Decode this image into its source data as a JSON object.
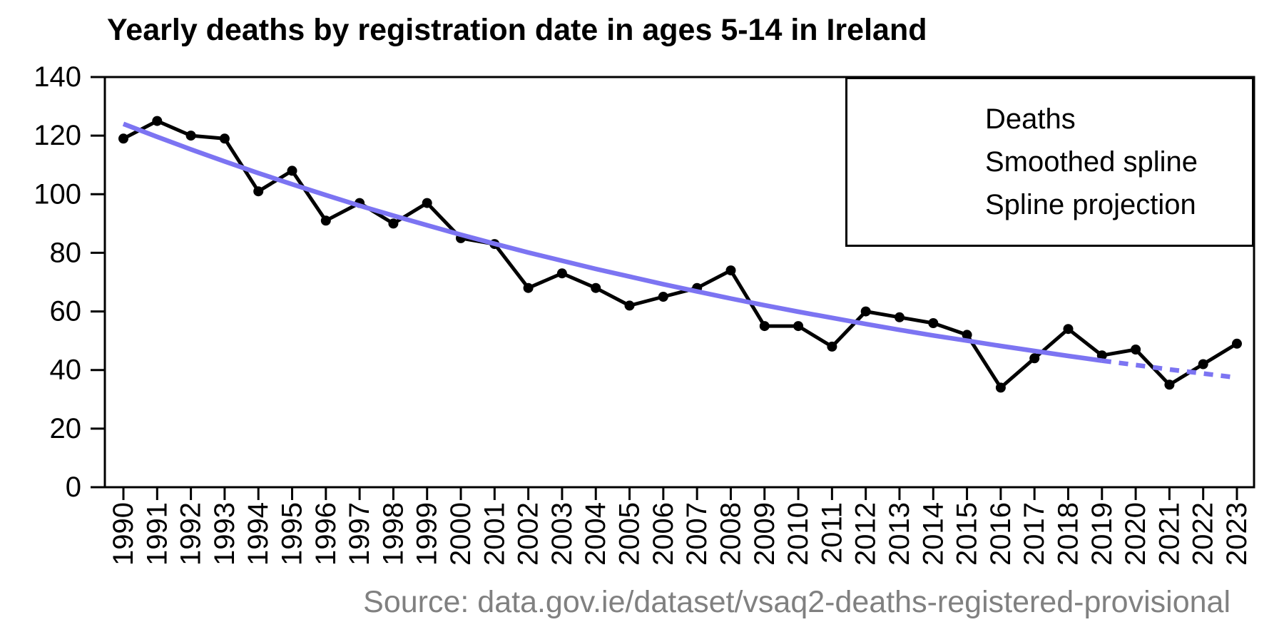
{
  "page": {
    "title_label": "Yearly deaths by registration date in ages 5-14 in Ireland",
    "source_label": "Source: data.gov.ie/dataset/vsaq2-deaths-registered-provisional"
  },
  "legend": {
    "items": [
      {
        "label": "Deaths",
        "style": "solid",
        "color": "#000000"
      },
      {
        "label": "Smoothed spline",
        "style": "solid",
        "color": "#7C74F2"
      },
      {
        "label": "Spline projection",
        "style": "dashed",
        "color": "#7C74F2"
      }
    ]
  },
  "colors": {
    "deaths": "#000000",
    "spline": "#7C74F2",
    "axis": "#000000",
    "source_text": "#808080"
  },
  "chart_data": {
    "type": "line",
    "title": "Yearly deaths by registration date in ages 5-14 in Ireland",
    "xlabel": "",
    "ylabel": "",
    "ylim": [
      0,
      140
    ],
    "yticks": [
      0,
      20,
      40,
      60,
      80,
      100,
      120,
      140
    ],
    "grid": false,
    "legend_position": "top-right",
    "x": [
      1990,
      1991,
      1992,
      1993,
      1994,
      1995,
      1996,
      1997,
      1998,
      1999,
      2000,
      2001,
      2002,
      2003,
      2004,
      2005,
      2006,
      2007,
      2008,
      2009,
      2010,
      2011,
      2012,
      2013,
      2014,
      2015,
      2016,
      2017,
      2018,
      2019,
      2020,
      2021,
      2022,
      2023
    ],
    "series": [
      {
        "name": "Deaths",
        "color": "#000000",
        "style": "solid",
        "markers": true,
        "x_start": 1990,
        "values": [
          119,
          125,
          120,
          119,
          101,
          108,
          91,
          97,
          90,
          97,
          85,
          83,
          68,
          73,
          68,
          62,
          65,
          68,
          74,
          55,
          55,
          48,
          60,
          58,
          56,
          52,
          34,
          44,
          54,
          45,
          47,
          35,
          42,
          49
        ]
      },
      {
        "name": "Smoothed spline",
        "color": "#7C74F2",
        "style": "solid",
        "markers": false,
        "x_start": 1990,
        "values": [
          124.0,
          119.6,
          115.3,
          111.2,
          107.2,
          103.4,
          99.7,
          96.1,
          92.7,
          89.4,
          86.2,
          83.1,
          80.1,
          77.3,
          74.5,
          71.9,
          69.3,
          66.8,
          64.4,
          62.1,
          59.9,
          57.8,
          55.7,
          53.7,
          51.8,
          50.0,
          48.2,
          46.5,
          44.8,
          43.2
        ]
      },
      {
        "name": "Spline projection",
        "color": "#7C74F2",
        "style": "dashed",
        "markers": false,
        "x_start": 2019,
        "values": [
          43.2,
          41.7,
          40.2,
          38.8,
          37.4
        ]
      }
    ]
  }
}
